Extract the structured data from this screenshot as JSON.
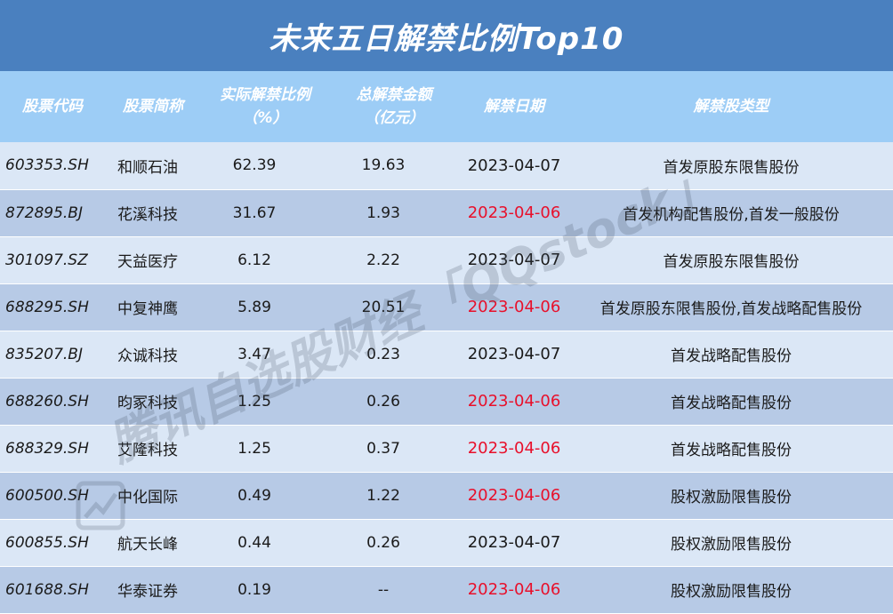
{
  "title": "未来五日解禁比例Top10",
  "watermark": "腾讯自选股财经「QQstock」",
  "colors": {
    "title_bg": "#4a80bf",
    "header_bg": "#9dcdf6",
    "row_light": "#dbe7f6",
    "row_dark": "#b7cae6",
    "date_red": "#e8102b"
  },
  "headers": {
    "code": "股票代码",
    "name": "股票简称",
    "ratio": "实际解禁比例",
    "ratio_unit": "（%）",
    "amount": "总解禁金额",
    "amount_unit": "（亿元）",
    "date": "解禁日期",
    "type": "解禁股类型"
  },
  "rows": [
    {
      "code": "603353.SH",
      "name": "和顺石油",
      "ratio": "62.39",
      "amount": "19.63",
      "date": "2023-04-07",
      "date_highlight": false,
      "type": "首发原股东限售股份"
    },
    {
      "code": "872895.BJ",
      "name": "花溪科技",
      "ratio": "31.67",
      "amount": "1.93",
      "date": "2023-04-06",
      "date_highlight": true,
      "type": "首发机构配售股份,首发一般股份"
    },
    {
      "code": "301097.SZ",
      "name": "天益医疗",
      "ratio": "6.12",
      "amount": "2.22",
      "date": "2023-04-07",
      "date_highlight": false,
      "type": "首发原股东限售股份"
    },
    {
      "code": "688295.SH",
      "name": "中复神鹰",
      "ratio": "5.89",
      "amount": "20.51",
      "date": "2023-04-06",
      "date_highlight": true,
      "type": "首发原股东限售股份,首发战略配售股份"
    },
    {
      "code": "835207.BJ",
      "name": "众诚科技",
      "ratio": "3.47",
      "amount": "0.23",
      "date": "2023-04-07",
      "date_highlight": false,
      "type": "首发战略配售股份"
    },
    {
      "code": "688260.SH",
      "name": "昀冢科技",
      "ratio": "1.25",
      "amount": "0.26",
      "date": "2023-04-06",
      "date_highlight": true,
      "type": "首发战略配售股份"
    },
    {
      "code": "688329.SH",
      "name": "艾隆科技",
      "ratio": "1.25",
      "amount": "0.37",
      "date": "2023-04-06",
      "date_highlight": true,
      "type": "首发战略配售股份"
    },
    {
      "code": "600500.SH",
      "name": "中化国际",
      "ratio": "0.49",
      "amount": "1.22",
      "date": "2023-04-06",
      "date_highlight": true,
      "type": "股权激励限售股份"
    },
    {
      "code": "600855.SH",
      "name": "航天长峰",
      "ratio": "0.44",
      "amount": "0.26",
      "date": "2023-04-07",
      "date_highlight": false,
      "type": "股权激励限售股份"
    },
    {
      "code": "601688.SH",
      "name": "华泰证券",
      "ratio": "0.19",
      "amount": "--",
      "date": "2023-04-06",
      "date_highlight": true,
      "type": "股权激励限售股份"
    }
  ]
}
